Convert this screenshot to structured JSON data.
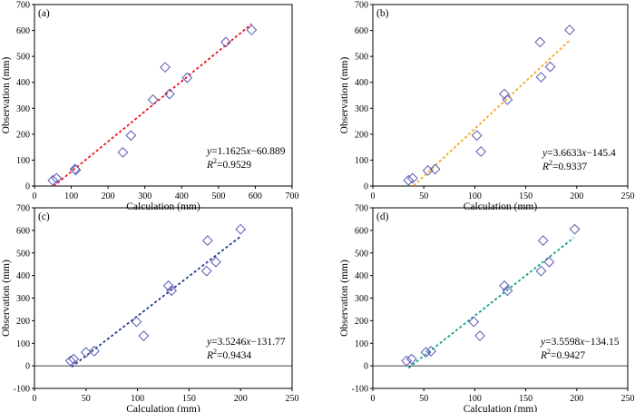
{
  "chart_data": [
    {
      "type": "scatter",
      "panel_label": "(a)",
      "xlabel": "Calculation (mm)",
      "ylabel": "Observation (mm)",
      "xlim": [
        0,
        700
      ],
      "ylim": [
        0,
        700
      ],
      "xticks": [
        0,
        100,
        200,
        300,
        400,
        500,
        600,
        700
      ],
      "yticks": [
        0,
        100,
        200,
        300,
        400,
        500,
        600,
        700
      ],
      "x": [
        50,
        60,
        110,
        112,
        240,
        262,
        322,
        355,
        367,
        415,
        520,
        590
      ],
      "y": [
        22,
        30,
        65,
        62,
        130,
        195,
        333,
        458,
        355,
        418,
        555,
        602
      ],
      "fit": {
        "slope": 1.1625,
        "intercept": -60.889,
        "x_range": [
          52,
          590
        ],
        "color": "#e8141e"
      },
      "equation": {
        "lhs": "y",
        "rhs": "=1.1625",
        "var": "x",
        "tail": "−60.889",
        "r2_label": "R",
        "r2_value": "=0.9529"
      }
    },
    {
      "type": "scatter",
      "panel_label": "(b)",
      "xlabel": "Calculation (mm)",
      "ylabel": "Observation (mm)",
      "xlim": [
        0,
        250
      ],
      "ylim": [
        0,
        700
      ],
      "xticks": [
        0,
        50,
        100,
        150,
        200,
        250
      ],
      "yticks": [
        0,
        100,
        200,
        300,
        400,
        500,
        600,
        700
      ],
      "x": [
        35,
        39,
        54,
        61,
        102,
        106,
        129,
        132,
        164,
        165,
        174,
        193
      ],
      "y": [
        22,
        30,
        60,
        65,
        195,
        133,
        355,
        333,
        555,
        420,
        460,
        602
      ],
      "fit": {
        "slope": 3.6633,
        "intercept": -145.4,
        "x_range": [
          40,
          194
        ],
        "color": "#f5a81e"
      },
      "equation": {
        "lhs": "y",
        "rhs": "=3.6633",
        "var": "x",
        "tail": "−145.4",
        "r2_label": "R",
        "r2_value": "=0.9337"
      }
    },
    {
      "type": "scatter",
      "panel_label": "(c)",
      "xlabel": "Calculation (mm)",
      "ylabel": "Observation (mm)",
      "xlim": [
        0,
        250
      ],
      "ylim": [
        -100,
        700
      ],
      "xticks": [
        0,
        50,
        100,
        150,
        200,
        250
      ],
      "yticks": [
        -100,
        0,
        100,
        200,
        300,
        400,
        500,
        600,
        700
      ],
      "x": [
        35,
        38,
        50,
        58,
        99,
        106,
        130,
        133,
        167,
        168,
        176,
        200
      ],
      "y": [
        22,
        30,
        60,
        65,
        195,
        133,
        355,
        333,
        420,
        555,
        460,
        605
      ],
      "fit": {
        "slope": 3.5246,
        "intercept": -131.77,
        "x_range": [
          36,
          200
        ],
        "color": "#1e3c8c"
      },
      "equation": {
        "lhs": "y",
        "rhs": "=3.5246",
        "var": "x",
        "tail": "−131.77",
        "r2_label": "R",
        "r2_value": "=0.9434"
      }
    },
    {
      "type": "scatter",
      "panel_label": "(d)",
      "xlabel": "Calculation (mm)",
      "ylabel": "Observation (mm)",
      "xlim": [
        0,
        250
      ],
      "ylim": [
        -100,
        700
      ],
      "xticks": [
        0,
        50,
        100,
        150,
        200,
        250
      ],
      "yticks": [
        -100,
        0,
        100,
        200,
        300,
        400,
        500,
        600,
        700
      ],
      "x": [
        33,
        38,
        52,
        57,
        99,
        105,
        129,
        132,
        165,
        167,
        173,
        198
      ],
      "y": [
        22,
        30,
        60,
        65,
        195,
        133,
        355,
        333,
        420,
        555,
        460,
        605
      ],
      "fit": {
        "slope": 3.5598,
        "intercept": -134.15,
        "x_range": [
          35,
          197
        ],
        "color": "#14a08c"
      },
      "equation": {
        "lhs": "y",
        "rhs": "=3.5598",
        "var": "x",
        "tail": "−134.15",
        "r2_label": "R",
        "r2_value": "=0.9427"
      }
    }
  ]
}
